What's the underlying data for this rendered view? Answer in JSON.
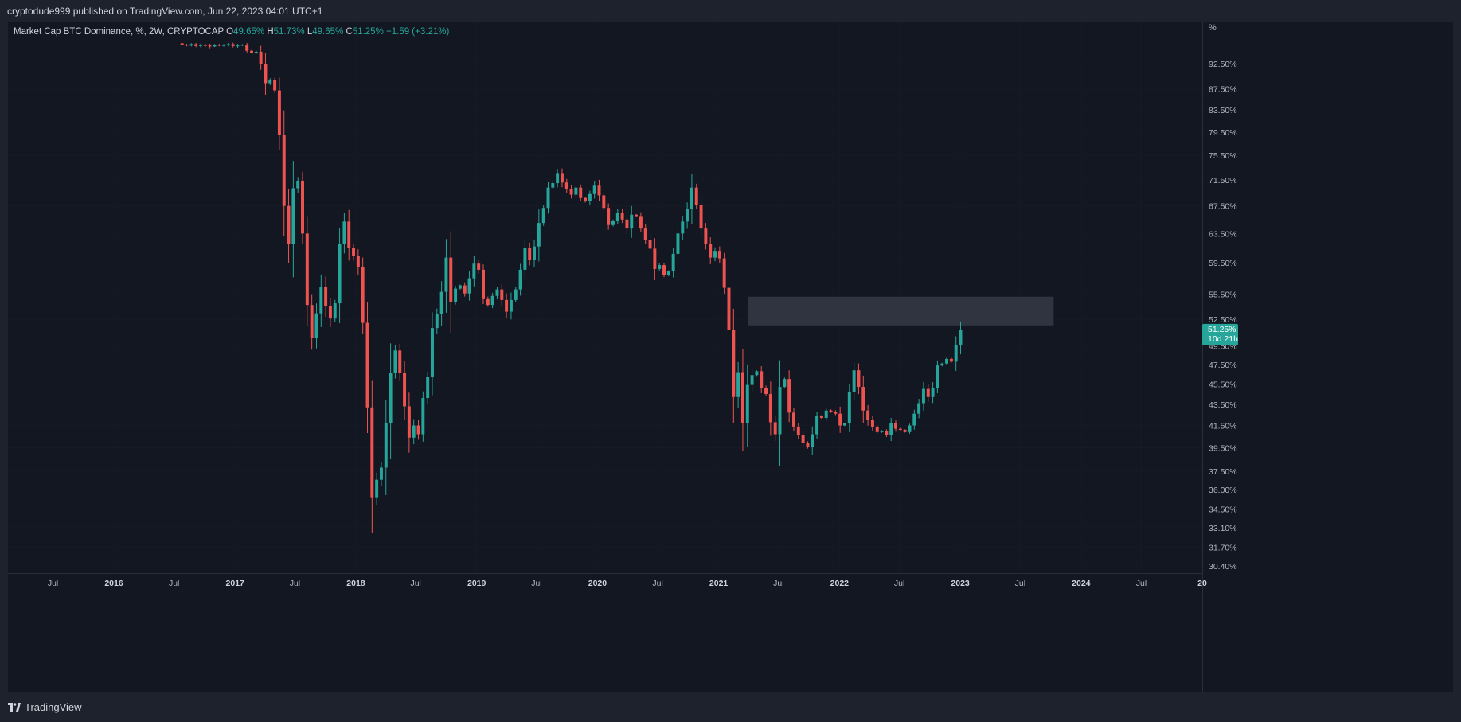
{
  "header": {
    "published_text": "cryptodude999 published on TradingView.com, Jun 22, 2023 04:01 UTC+1"
  },
  "legend": {
    "symbol": "Market Cap BTC Dominance, %, 2W, CRYPTOCAP",
    "open_label": "O",
    "open_value": "49.65%",
    "high_label": "H",
    "high_value": "51.73%",
    "low_label": "L",
    "low_value": "49.65%",
    "close_label": "C",
    "close_value": "51.25%",
    "change": "+1.59 (+3.21%)"
  },
  "price_axis": {
    "unit_label": "%",
    "current_price": "51.25%",
    "countdown": "10d 21h",
    "current_tag_color": "#26a69a"
  },
  "branding": {
    "name": "TradingView"
  },
  "colors": {
    "up": "#26a69a",
    "down": "#ef5350",
    "background": "#131722",
    "zone": "#363a45"
  },
  "chart_data": {
    "type": "candlestick",
    "interval": "2W",
    "y_scale": "log",
    "ylim": [
      30.4,
      96.0
    ],
    "y_ticks": [
      {
        "value": 92.5,
        "label": "92.50%"
      },
      {
        "value": 87.5,
        "label": "87.50%"
      },
      {
        "value": 83.5,
        "label": "83.50%"
      },
      {
        "value": 79.5,
        "label": "79.50%"
      },
      {
        "value": 75.5,
        "label": "75.50%"
      },
      {
        "value": 71.5,
        "label": "71.50%"
      },
      {
        "value": 67.5,
        "label": "67.50%"
      },
      {
        "value": 63.5,
        "label": "63.50%"
      },
      {
        "value": 59.5,
        "label": "59.50%"
      },
      {
        "value": 55.5,
        "label": "55.50%"
      },
      {
        "value": 52.5,
        "label": "52.50%"
      },
      {
        "value": 49.5,
        "label": "49.50%"
      },
      {
        "value": 47.5,
        "label": "47.50%"
      },
      {
        "value": 45.5,
        "label": "45.50%"
      },
      {
        "value": 43.5,
        "label": "43.50%"
      },
      {
        "value": 41.5,
        "label": "41.50%"
      },
      {
        "value": 39.5,
        "label": "39.50%"
      },
      {
        "value": 37.5,
        "label": "37.50%"
      },
      {
        "value": 36.0,
        "label": "36.00%"
      },
      {
        "value": 34.5,
        "label": "34.50%"
      },
      {
        "value": 33.1,
        "label": "33.10%"
      },
      {
        "value": 31.7,
        "label": "31.70%"
      },
      {
        "value": 30.4,
        "label": "30.40%"
      }
    ],
    "xlim": [
      "2015-02-15",
      "2025-01-01"
    ],
    "x_ticks": [
      {
        "date": "2015-07-01",
        "label": "Jul",
        "bold": false
      },
      {
        "date": "2016-01-01",
        "label": "2016",
        "bold": true
      },
      {
        "date": "2016-07-01",
        "label": "Jul",
        "bold": false
      },
      {
        "date": "2017-01-01",
        "label": "2017",
        "bold": true
      },
      {
        "date": "2017-07-01",
        "label": "Jul",
        "bold": false
      },
      {
        "date": "2018-01-01",
        "label": "2018",
        "bold": true
      },
      {
        "date": "2018-07-01",
        "label": "Jul",
        "bold": false
      },
      {
        "date": "2019-01-01",
        "label": "2019",
        "bold": true
      },
      {
        "date": "2019-07-01",
        "label": "Jul",
        "bold": false
      },
      {
        "date": "2020-01-01",
        "label": "2020",
        "bold": true
      },
      {
        "date": "2020-07-01",
        "label": "Jul",
        "bold": false
      },
      {
        "date": "2021-01-01",
        "label": "2021",
        "bold": true
      },
      {
        "date": "2021-07-01",
        "label": "Jul",
        "bold": false
      },
      {
        "date": "2022-01-01",
        "label": "2022",
        "bold": true
      },
      {
        "date": "2022-07-01",
        "label": "Jul",
        "bold": false
      },
      {
        "date": "2023-01-01",
        "label": "2023",
        "bold": true
      },
      {
        "date": "2023-07-01",
        "label": "Jul",
        "bold": false
      },
      {
        "date": "2024-01-01",
        "label": "2024",
        "bold": true
      },
      {
        "date": "2024-07-01",
        "label": "Jul",
        "bold": false
      },
      {
        "date": "2025-01-01",
        "label": "20",
        "bold": true
      }
    ],
    "zone": {
      "from": "2021-04-01",
      "to": "2023-10-10",
      "low": 51.8,
      "high": 55.2
    },
    "first_date": "2016-07-25",
    "closes": [
      96.5,
      96.3,
      96.6,
      96.2,
      96.4,
      96.3,
      96.1,
      96.5,
      96.3,
      96.4,
      96.6,
      96.2,
      96.3,
      96.5,
      95.2,
      94.8,
      95.0,
      92.5,
      88.6,
      89.2,
      87.2,
      79.0,
      67.5,
      62.0,
      70.2,
      71.3,
      63.5,
      54.2,
      50.4,
      53.2,
      56.4,
      54.1,
      52.6,
      54.4,
      62.0,
      65.2,
      61.5,
      60.4,
      58.9,
      52.1,
      43.2,
      35.4,
      36.8,
      37.8,
      41.7,
      46.6,
      49.0,
      46.6,
      43.3,
      40.4,
      41.5,
      40.7,
      44.1,
      46.2,
      51.5,
      53.1,
      55.8,
      60.2,
      54.6,
      56.2,
      56.6,
      55.6,
      57.5,
      59.4,
      58.6,
      55.0,
      54.2,
      55.3,
      56.1,
      54.8,
      53.4,
      54.8,
      56.1,
      58.6,
      61.5,
      59.9,
      61.7,
      65.0,
      67.2,
      70.3,
      71.0,
      72.6,
      71.1,
      70.1,
      69.2,
      70.3,
      68.7,
      68.2,
      69.3,
      70.6,
      69.1,
      67.2,
      64.7,
      65.3,
      66.5,
      65.5,
      64.2,
      66.2,
      66.0,
      64.2,
      62.6,
      61.4,
      58.7,
      59.2,
      57.9,
      58.4,
      60.7,
      63.5,
      65.2,
      67.0,
      70.3,
      67.7,
      64.2,
      62.1,
      60.2,
      61.1,
      60.1,
      56.3,
      51.3,
      44.2,
      46.7,
      41.7,
      45.4,
      46.4,
      46.8,
      45.1,
      44.5,
      41.8,
      40.7,
      45.2,
      46.0,
      42.7,
      41.4,
      40.6,
      39.9,
      39.6,
      40.7,
      42.4,
      42.2,
      42.9,
      42.8,
      42.6,
      41.5,
      41.7,
      44.7,
      46.9,
      45.2,
      42.9,
      42.0,
      41.4,
      40.9,
      41.0,
      40.6,
      41.7,
      41.2,
      41.1,
      40.9,
      41.5,
      42.6,
      43.6,
      45.0,
      44.2,
      45.1,
      47.4,
      47.6,
      48.1,
      47.8,
      49.6,
      51.25
    ]
  }
}
